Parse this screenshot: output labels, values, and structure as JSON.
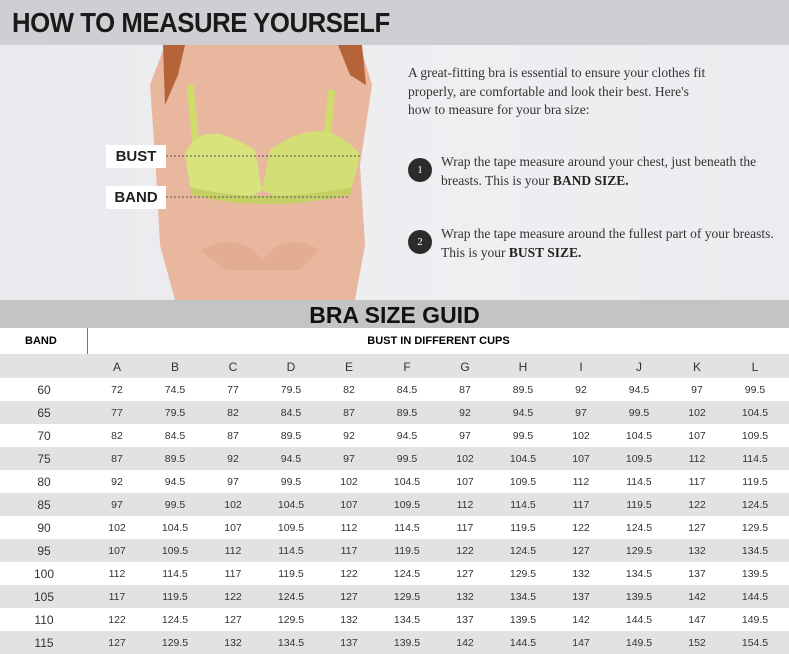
{
  "header": {
    "title": "HOW TO MEASURE YOURSELF"
  },
  "hero": {
    "labels": {
      "bust": "BUST",
      "band": "BAND"
    },
    "intro": "A great-fitting bra is essential to ensure your clothes fit properly, are comfortable and look their best. Here's how to measure for your bra size:",
    "steps": [
      {
        "num": "1",
        "text": "Wrap the tape measure around your chest, just beneath the breasts. This is your ",
        "bold": "BAND SIZE."
      },
      {
        "num": "2",
        "text": "Wrap the tape measure around the fullest part of your breasts. This is your ",
        "bold": "BUST SIZE."
      }
    ],
    "colors": {
      "bra": "#d9e37e",
      "skin": "#e9b9a0",
      "hair": "#b5643a"
    }
  },
  "guide": {
    "title": "BRA SIZE GUID",
    "band_header": "BAND",
    "bust_header": "BUST IN DIFFERENT CUPS",
    "cups": [
      "A",
      "B",
      "C",
      "D",
      "E",
      "F",
      "G",
      "H",
      "I",
      "J",
      "K",
      "L"
    ],
    "rows": [
      {
        "band": "60",
        "values": [
          "72",
          "74.5",
          "77",
          "79.5",
          "82",
          "84.5",
          "87",
          "89.5",
          "92",
          "94.5",
          "97",
          "99.5"
        ]
      },
      {
        "band": "65",
        "values": [
          "77",
          "79.5",
          "82",
          "84.5",
          "87",
          "89.5",
          "92",
          "94.5",
          "97",
          "99.5",
          "102",
          "104.5"
        ]
      },
      {
        "band": "70",
        "values": [
          "82",
          "84.5",
          "87",
          "89.5",
          "92",
          "94.5",
          "97",
          "99.5",
          "102",
          "104.5",
          "107",
          "109.5"
        ]
      },
      {
        "band": "75",
        "values": [
          "87",
          "89.5",
          "92",
          "94.5",
          "97",
          "99.5",
          "102",
          "104.5",
          "107",
          "109.5",
          "112",
          "114.5"
        ]
      },
      {
        "band": "80",
        "values": [
          "92",
          "94.5",
          "97",
          "99.5",
          "102",
          "104.5",
          "107",
          "109.5",
          "112",
          "114.5",
          "117",
          "119.5"
        ]
      },
      {
        "band": "85",
        "values": [
          "97",
          "99.5",
          "102",
          "104.5",
          "107",
          "109.5",
          "112",
          "114.5",
          "117",
          "119.5",
          "122",
          "124.5"
        ]
      },
      {
        "band": "90",
        "values": [
          "102",
          "104.5",
          "107",
          "109.5",
          "112",
          "114.5",
          "117",
          "119.5",
          "122",
          "124.5",
          "127",
          "129.5"
        ]
      },
      {
        "band": "95",
        "values": [
          "107",
          "109.5",
          "112",
          "114.5",
          "117",
          "119.5",
          "122",
          "124.5",
          "127",
          "129.5",
          "132",
          "134.5"
        ]
      },
      {
        "band": "100",
        "values": [
          "112",
          "114.5",
          "117",
          "119.5",
          "122",
          "124.5",
          "127",
          "129.5",
          "132",
          "134.5",
          "137",
          "139.5"
        ]
      },
      {
        "band": "105",
        "values": [
          "117",
          "119.5",
          "122",
          "124.5",
          "127",
          "129.5",
          "132",
          "134.5",
          "137",
          "139.5",
          "142",
          "144.5"
        ]
      },
      {
        "band": "110",
        "values": [
          "122",
          "124.5",
          "127",
          "129.5",
          "132",
          "134.5",
          "137",
          "139.5",
          "142",
          "144.5",
          "147",
          "149.5"
        ]
      },
      {
        "band": "115",
        "values": [
          "127",
          "129.5",
          "132",
          "134.5",
          "137",
          "139.5",
          "142",
          "144.5",
          "147",
          "149.5",
          "152",
          "154.5"
        ]
      }
    ]
  }
}
